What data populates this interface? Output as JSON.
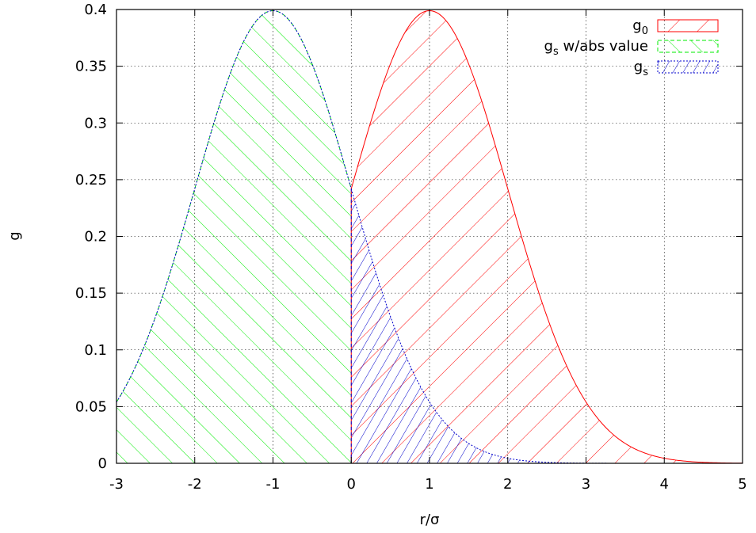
{
  "chart_data": {
    "type": "area",
    "title": "",
    "xlabel": "r/σ",
    "ylabel": "g",
    "xlim": [
      -3,
      5
    ],
    "ylim": [
      0,
      0.4
    ],
    "grid": true,
    "legend_position": "top-right",
    "x_ticks": [
      "-3",
      "-2",
      "-1",
      "0",
      "1",
      "2",
      "3",
      "4",
      "5"
    ],
    "y_ticks": [
      "0",
      "0.05",
      "0.1",
      "0.15",
      "0.2",
      "0.25",
      "0.3",
      "0.35",
      "0.4"
    ],
    "colors": {
      "g0": "#ff0000",
      "gs_abs": "#00ee00",
      "gs": "#0000cc"
    },
    "series": [
      {
        "name": "g0",
        "name_base": "g",
        "name_sub": "0",
        "name_rest": "",
        "curve": "normal",
        "mean": 1,
        "sd": 1,
        "fill_domain": [
          0,
          5
        ],
        "pattern": "diagonal-wide"
      },
      {
        "name": "gs w/abs value",
        "name_base": "g",
        "name_sub": "s",
        "name_rest": " w/abs value",
        "curve": "normal-mirrored-about-0",
        "mean": -1,
        "sd": 1,
        "fill_domain": [
          -3,
          0
        ],
        "pattern": "diagonal-medium"
      },
      {
        "name": "gs",
        "name_base": "g",
        "name_sub": "s",
        "name_rest": "",
        "curve": "normal",
        "mean": -1,
        "sd": 1,
        "fill_domain": [
          0,
          5
        ],
        "pattern": "diagonal-dense"
      }
    ],
    "sample_points": {
      "x": [
        -3,
        -2,
        -1,
        0,
        1,
        2,
        3,
        4,
        5
      ],
      "g0": [
        0.0001,
        0.0044,
        0.054,
        0.242,
        0.399,
        0.242,
        0.054,
        0.0044,
        0.0001
      ],
      "gs": [
        0.054,
        0.242,
        0.399,
        0.242,
        0.054,
        0.0044,
        0.0001,
        0.0,
        0.0
      ]
    }
  }
}
